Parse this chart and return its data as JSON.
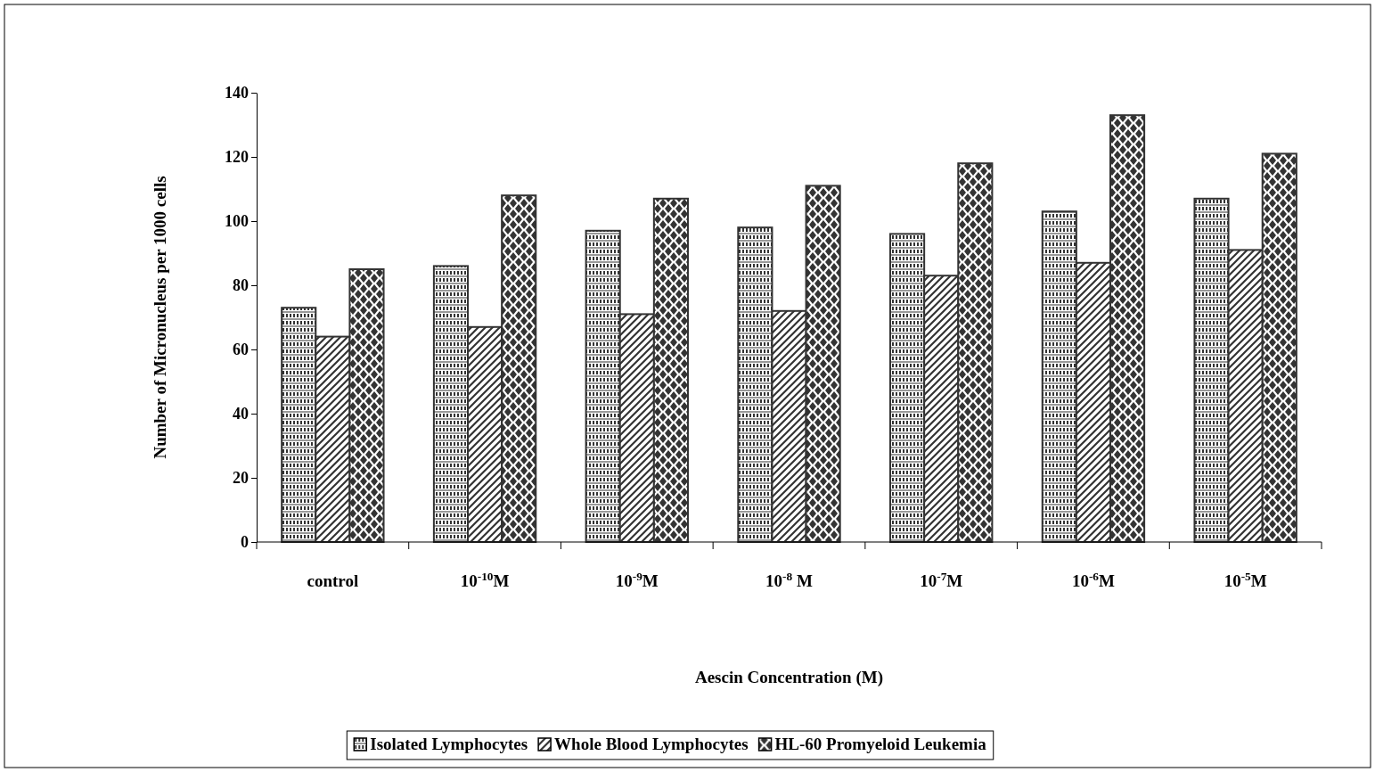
{
  "chart_data": {
    "type": "bar",
    "xlabel": "Aescin Concentration (M)",
    "ylabel": "Number of Micronucleus per 1000 cells",
    "categories": [
      "control",
      "10$^{-10}$M",
      "10$^{-9}$M",
      "10$^{-8}$ M",
      "10$^{-7}$M",
      "10$^{-6}$M",
      "10$^{-5}$M"
    ],
    "series": [
      {
        "name": "Isolated Lymphocytes",
        "color": "#333333",
        "values": [
          73,
          86,
          97,
          98,
          96,
          103,
          107
        ]
      },
      {
        "name": "Whole Blood Lymphocytes",
        "color": "#333333",
        "values": [
          64,
          67,
          71,
          72,
          83,
          87,
          91
        ]
      },
      {
        "name": "HL-60 Promyeloid Leukemia",
        "color": "#333333",
        "values": [
          85,
          108,
          107,
          111,
          118,
          133,
          121
        ]
      }
    ],
    "ylim": [
      0,
      140
    ],
    "yticks": [
      0,
      20,
      40,
      60,
      80,
      100,
      120,
      140
    ],
    "legend": "bottom"
  }
}
